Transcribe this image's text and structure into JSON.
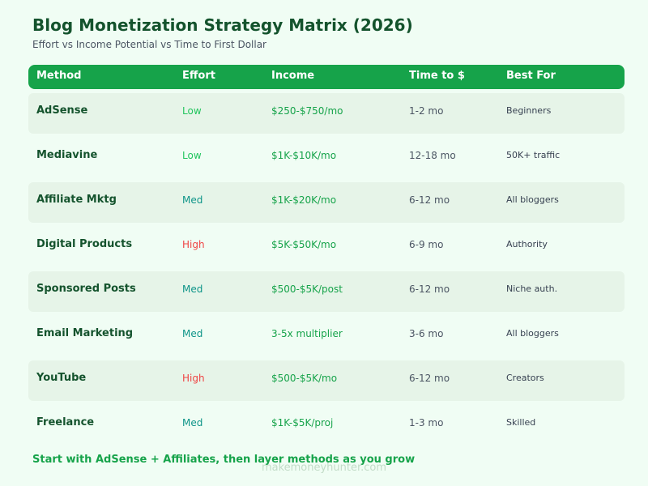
{
  "title": "Blog Monetization Strategy Matrix (2026)",
  "subtitle": "Effort vs Income Potential vs Time to First Dollar",
  "colors": {
    "background": "#f0fdf4",
    "header": "#16a34a",
    "row_shade": "#e6f4e8",
    "effort_low": "#22c55e",
    "effort_med": "#0d9488",
    "effort_high": "#ef4444"
  },
  "table": {
    "headers": {
      "method": "Method",
      "effort": "Effort",
      "income": "Income",
      "time": "Time to $",
      "best_for": "Best For"
    },
    "rows": [
      {
        "method": "AdSense",
        "effort": "Low",
        "income": "$250-$750/mo",
        "time": "1-2 mo",
        "best_for": "Beginners"
      },
      {
        "method": "Mediavine",
        "effort": "Low",
        "income": "$1K-$10K/mo",
        "time": "12-18 mo",
        "best_for": "50K+ traffic"
      },
      {
        "method": "Affiliate Mktg",
        "effort": "Med",
        "income": "$1K-$20K/mo",
        "time": "6-12 mo",
        "best_for": "All bloggers"
      },
      {
        "method": "Digital Products",
        "effort": "High",
        "income": "$5K-$50K/mo",
        "time": "6-9 mo",
        "best_for": "Authority"
      },
      {
        "method": "Sponsored Posts",
        "effort": "Med",
        "income": "$500-$5K/post",
        "time": "6-12 mo",
        "best_for": "Niche auth."
      },
      {
        "method": "Email Marketing",
        "effort": "Med",
        "income": "3-5x multiplier",
        "time": "3-6 mo",
        "best_for": "All bloggers"
      },
      {
        "method": "YouTube",
        "effort": "High",
        "income": "$500-$5K/mo",
        "time": "6-12 mo",
        "best_for": "Creators"
      },
      {
        "method": "Freelance",
        "effort": "Med",
        "income": "$1K-$5K/proj",
        "time": "1-3 mo",
        "best_for": "Skilled"
      }
    ]
  },
  "footer": "Start with AdSense + Affiliates, then layer methods as you grow",
  "watermark": "makemoneyhunter.com"
}
